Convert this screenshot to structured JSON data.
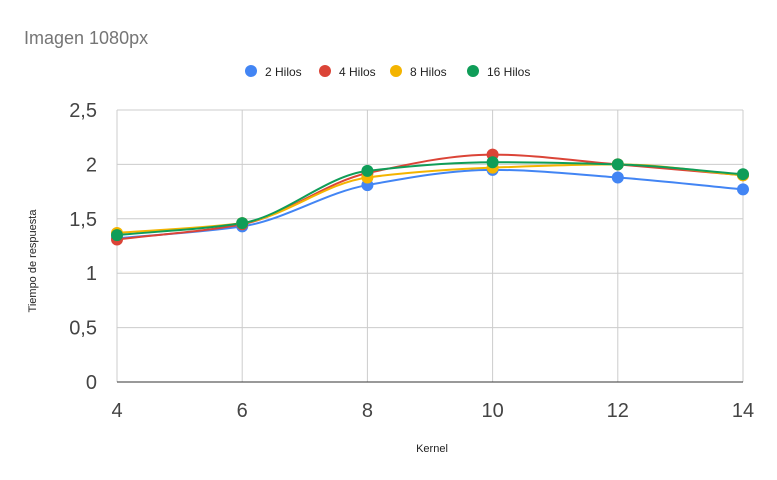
{
  "chart_data": {
    "type": "line",
    "title": "Imagen 1080px",
    "xlabel": "Kernel",
    "ylabel": "Tiempo de respuesta",
    "x": [
      4,
      6,
      8,
      10,
      12,
      14
    ],
    "x_ticks": [
      "4",
      "6",
      "8",
      "10",
      "12",
      "14"
    ],
    "y_ticks": [
      "0",
      "0,5",
      "1",
      "1,5",
      "2",
      "2,5"
    ],
    "ylim": [
      0,
      2.5
    ],
    "xlim": [
      4,
      14
    ],
    "grid": true,
    "smooth": true,
    "legend_position": "top",
    "series": [
      {
        "name": "2 Hilos",
        "color": "#4285F4",
        "values": [
          1.32,
          1.43,
          1.81,
          1.95,
          1.88,
          1.77
        ]
      },
      {
        "name": "4 Hilos",
        "color": "#DB4437",
        "values": [
          1.31,
          1.45,
          1.92,
          2.09,
          2.0,
          1.9
        ]
      },
      {
        "name": "8 Hilos",
        "color": "#F4B400",
        "values": [
          1.37,
          1.46,
          1.88,
          1.97,
          2.0,
          1.9
        ]
      },
      {
        "name": "16 Hilos",
        "color": "#0F9D58",
        "values": [
          1.35,
          1.46,
          1.94,
          2.02,
          2.0,
          1.91
        ]
      }
    ]
  }
}
